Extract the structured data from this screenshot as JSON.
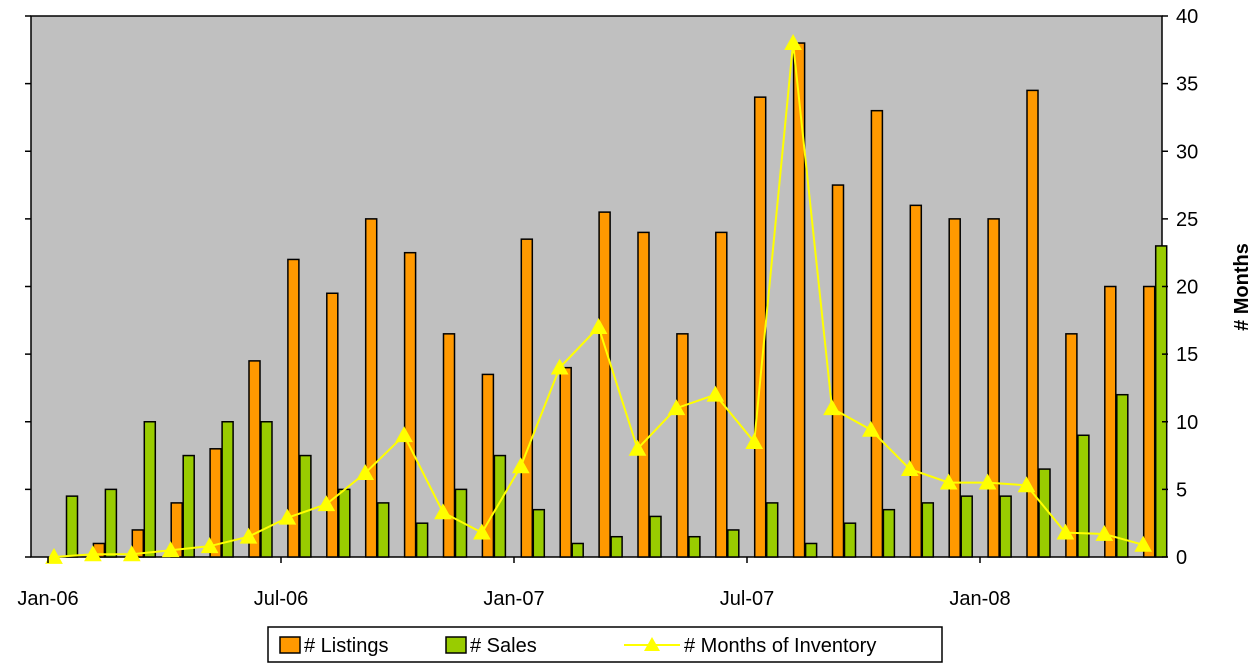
{
  "chart_data": {
    "type": "bar",
    "x_tick_labels": [
      "Jan-06",
      "Jul-06",
      "Jan-07",
      "Jul-07",
      "Jan-08"
    ],
    "y_left_ticks": [
      "0",
      "5",
      "10",
      "15",
      "20",
      "25",
      "30",
      "35",
      "40"
    ],
    "y_right_ticks": [
      "0",
      "5",
      "10",
      "15",
      "20",
      "25",
      "30",
      "35",
      "40"
    ],
    "ylabel_right": "# Months",
    "ylim": [
      0,
      40
    ],
    "grid": false,
    "legend_position": "bottom",
    "categories": [
      "Jan-06",
      "Feb-06",
      "Mar-06",
      "Apr-06",
      "May-06",
      "Jun-06",
      "Jul-06",
      "Aug-06",
      "Sep-06",
      "Oct-06",
      "Nov-06",
      "Dec-06",
      "Jan-07",
      "Feb-07",
      "Mar-07",
      "Apr-07",
      "May-07",
      "Jun-07",
      "Jul-07",
      "Aug-07",
      "Sep-07",
      "Oct-07",
      "Nov-07",
      "Dec-07",
      "Jan-08",
      "Feb-08",
      "Mar-08",
      "Apr-08",
      "May-08"
    ],
    "series": [
      {
        "name": "# Listings",
        "kind": "bar",
        "color": "#FF9900",
        "values": [
          0,
          1,
          2,
          4,
          8,
          14.5,
          22,
          19.5,
          25,
          22.5,
          16.5,
          13.5,
          23.5,
          14,
          25.5,
          24,
          16.5,
          24,
          34,
          38,
          27.5,
          33,
          26,
          25,
          25,
          34.5,
          16.5,
          20,
          20
        ]
      },
      {
        "name": "# Sales",
        "kind": "bar",
        "color": "#99CC00",
        "values": [
          4.5,
          5,
          10,
          7.5,
          10,
          10,
          7.5,
          5,
          4,
          2.5,
          5,
          7.5,
          3.5,
          1,
          1.5,
          3,
          1.5,
          2,
          4,
          1,
          2.5,
          3.5,
          4,
          4.5,
          4.5,
          6.5,
          9,
          12,
          23
        ]
      },
      {
        "name": "# Months of Inventory",
        "kind": "line",
        "color": "#FFFF00",
        "values": [
          0,
          0.2,
          0.2,
          0.5,
          0.8,
          1.5,
          2.9,
          3.9,
          6.2,
          9.0,
          3.3,
          1.8,
          6.7,
          14.0,
          17.0,
          8.0,
          11.0,
          12.0,
          8.5,
          38.0,
          11.0,
          9.4,
          6.5,
          5.5,
          5.5,
          5.3,
          1.8,
          1.7,
          0.9
        ]
      }
    ],
    "colors": {
      "plot_background": "#C0C0C0",
      "listings": "#FF9900",
      "sales": "#99CC00",
      "inventory": "#FFFF00"
    }
  }
}
